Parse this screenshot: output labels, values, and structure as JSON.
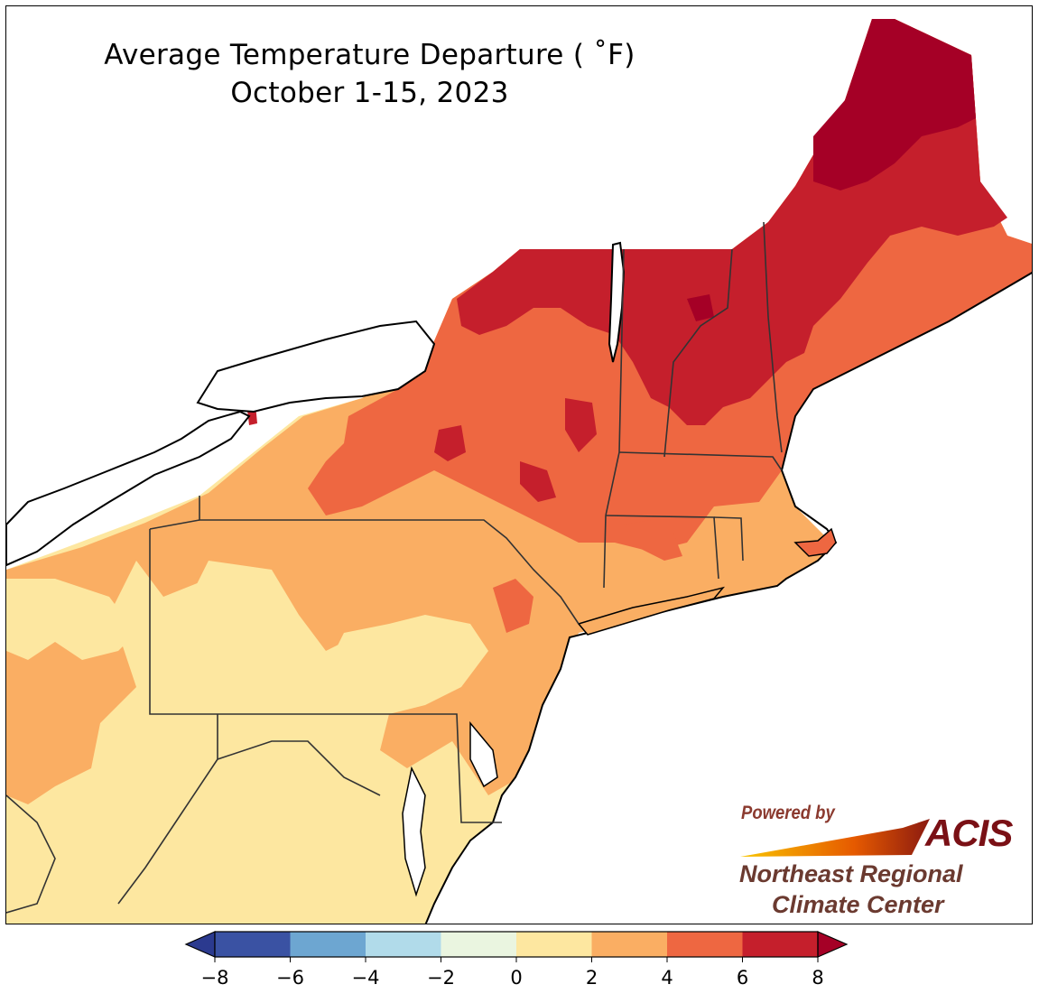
{
  "title": {
    "line1": "Average Temperature Departure ( ˚F)",
    "line2": "October 1-15, 2023"
  },
  "legend": {
    "ticks": [
      "−8",
      "−6",
      "−4",
      "−2",
      "0",
      "2",
      "4",
      "6",
      "8"
    ],
    "bins": [
      {
        "from": -8,
        "to": -6,
        "color": "#3a52a3"
      },
      {
        "from": -6,
        "to": -4,
        "color": "#6da6d1"
      },
      {
        "from": -4,
        "to": -2,
        "color": "#b1dbea"
      },
      {
        "from": -2,
        "to": 0,
        "color": "#eaf5e0"
      },
      {
        "from": 0,
        "to": 2,
        "color": "#fde7a0"
      },
      {
        "from": 2,
        "to": 4,
        "color": "#faae63"
      },
      {
        "from": 4,
        "to": 6,
        "color": "#ee6741"
      },
      {
        "from": 6,
        "to": 8,
        "color": "#c51f2c"
      }
    ],
    "under_color": "#2b3a8f",
    "over_color": "#a50026"
  },
  "logo": {
    "powered_by": "Powered by",
    "acis": "ACIS",
    "line1": "Northeast Regional",
    "line2": "Climate Center"
  },
  "colors": {
    "land_outside": "#ffffff",
    "lake": "#ffffff",
    "ocean": "#ffffff",
    "state_border": "#333333",
    "coast": "#000000"
  }
}
